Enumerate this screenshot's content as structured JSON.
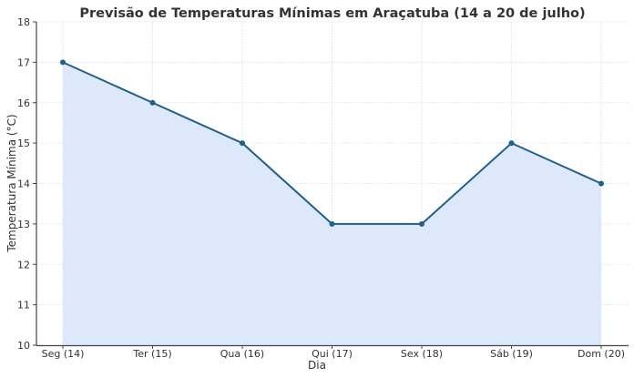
{
  "chart_data": {
    "type": "line",
    "title": "Previsão de Temperaturas Mínimas em Araçatuba (14 a 20 de julho)",
    "xlabel": "Dia",
    "ylabel": "Temperatura Mínima (°C)",
    "categories": [
      "Seg (14)",
      "Ter (15)",
      "Qua (16)",
      "Qui (17)",
      "Sex (18)",
      "Sáb (19)",
      "Dom (20)"
    ],
    "series": [
      {
        "name": "Temperatura Mínima",
        "values": [
          17,
          16,
          15,
          13,
          13,
          15,
          14
        ],
        "color": "#1f5f8b",
        "fill": "#dde9fb",
        "marker": "circle"
      }
    ],
    "ylim": [
      10,
      18
    ],
    "yticks": [
      10,
      11,
      12,
      13,
      14,
      15,
      16,
      17,
      18
    ],
    "grid": true,
    "legend": "none"
  }
}
